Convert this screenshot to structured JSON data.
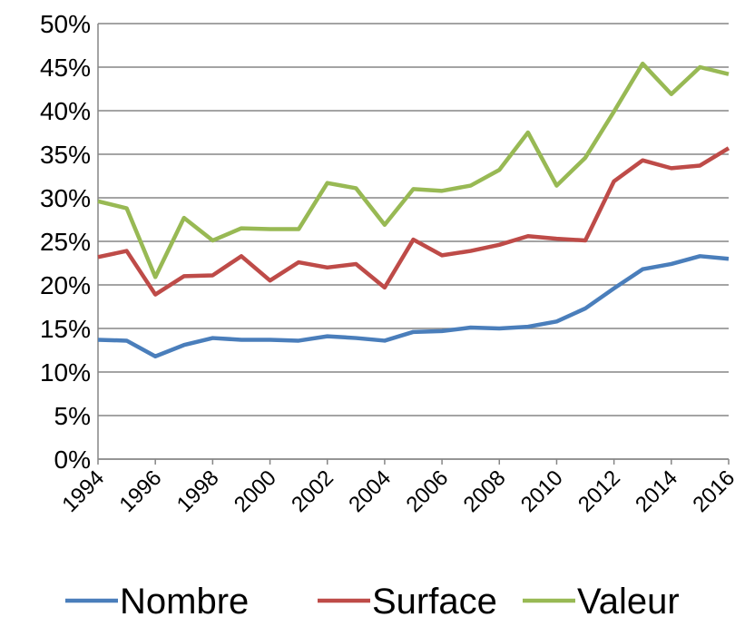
{
  "chart_data": {
    "type": "line",
    "x": [
      1994,
      1995,
      1996,
      1997,
      1998,
      1999,
      2000,
      2001,
      2002,
      2003,
      2004,
      2005,
      2006,
      2007,
      2008,
      2009,
      2010,
      2011,
      2012,
      2013,
      2014,
      2015,
      2016
    ],
    "series": [
      {
        "name": "Nombre",
        "color": "#4a7ebb",
        "values": [
          13.7,
          13.6,
          11.8,
          13.1,
          13.9,
          13.7,
          13.7,
          13.6,
          14.1,
          13.9,
          13.6,
          14.6,
          14.7,
          15.1,
          15.0,
          15.2,
          15.8,
          17.3,
          19.6,
          21.8,
          22.4,
          23.3,
          23.0
        ]
      },
      {
        "name": "Surface",
        "color": "#be4b48",
        "values": [
          23.2,
          23.9,
          18.9,
          21.0,
          21.1,
          23.3,
          20.5,
          22.6,
          22.0,
          22.4,
          19.7,
          25.2,
          23.4,
          23.9,
          24.6,
          25.6,
          25.3,
          25.1,
          31.9,
          34.3,
          33.4,
          33.7,
          35.7
        ]
      },
      {
        "name": "Valeur",
        "color": "#98b954",
        "values": [
          29.6,
          28.8,
          20.9,
          27.7,
          25.1,
          26.5,
          26.4,
          26.4,
          31.7,
          31.1,
          26.9,
          31.0,
          30.8,
          31.4,
          33.2,
          37.5,
          31.4,
          34.6,
          39.9,
          45.4,
          41.9,
          45.0,
          44.2
        ]
      }
    ],
    "xlim": [
      1994,
      2016
    ],
    "xticks": [
      1994,
      1996,
      1998,
      2000,
      2002,
      2004,
      2006,
      2008,
      2010,
      2012,
      2014,
      2016
    ],
    "ylim": [
      0,
      50
    ],
    "yticks": [
      {
        "value": 0,
        "label": "0%"
      },
      {
        "value": 5,
        "label": "5%"
      },
      {
        "value": 10,
        "label": "10%"
      },
      {
        "value": 15,
        "label": "15%"
      },
      {
        "value": 20,
        "label": "20%"
      },
      {
        "value": 25,
        "label": "25%"
      },
      {
        "value": 30,
        "label": "30%"
      },
      {
        "value": 35,
        "label": "35%"
      },
      {
        "value": 40,
        "label": "40%"
      },
      {
        "value": 45,
        "label": "45%"
      },
      {
        "value": 50,
        "label": "50%"
      }
    ],
    "grid": true,
    "legend": "bottom"
  }
}
